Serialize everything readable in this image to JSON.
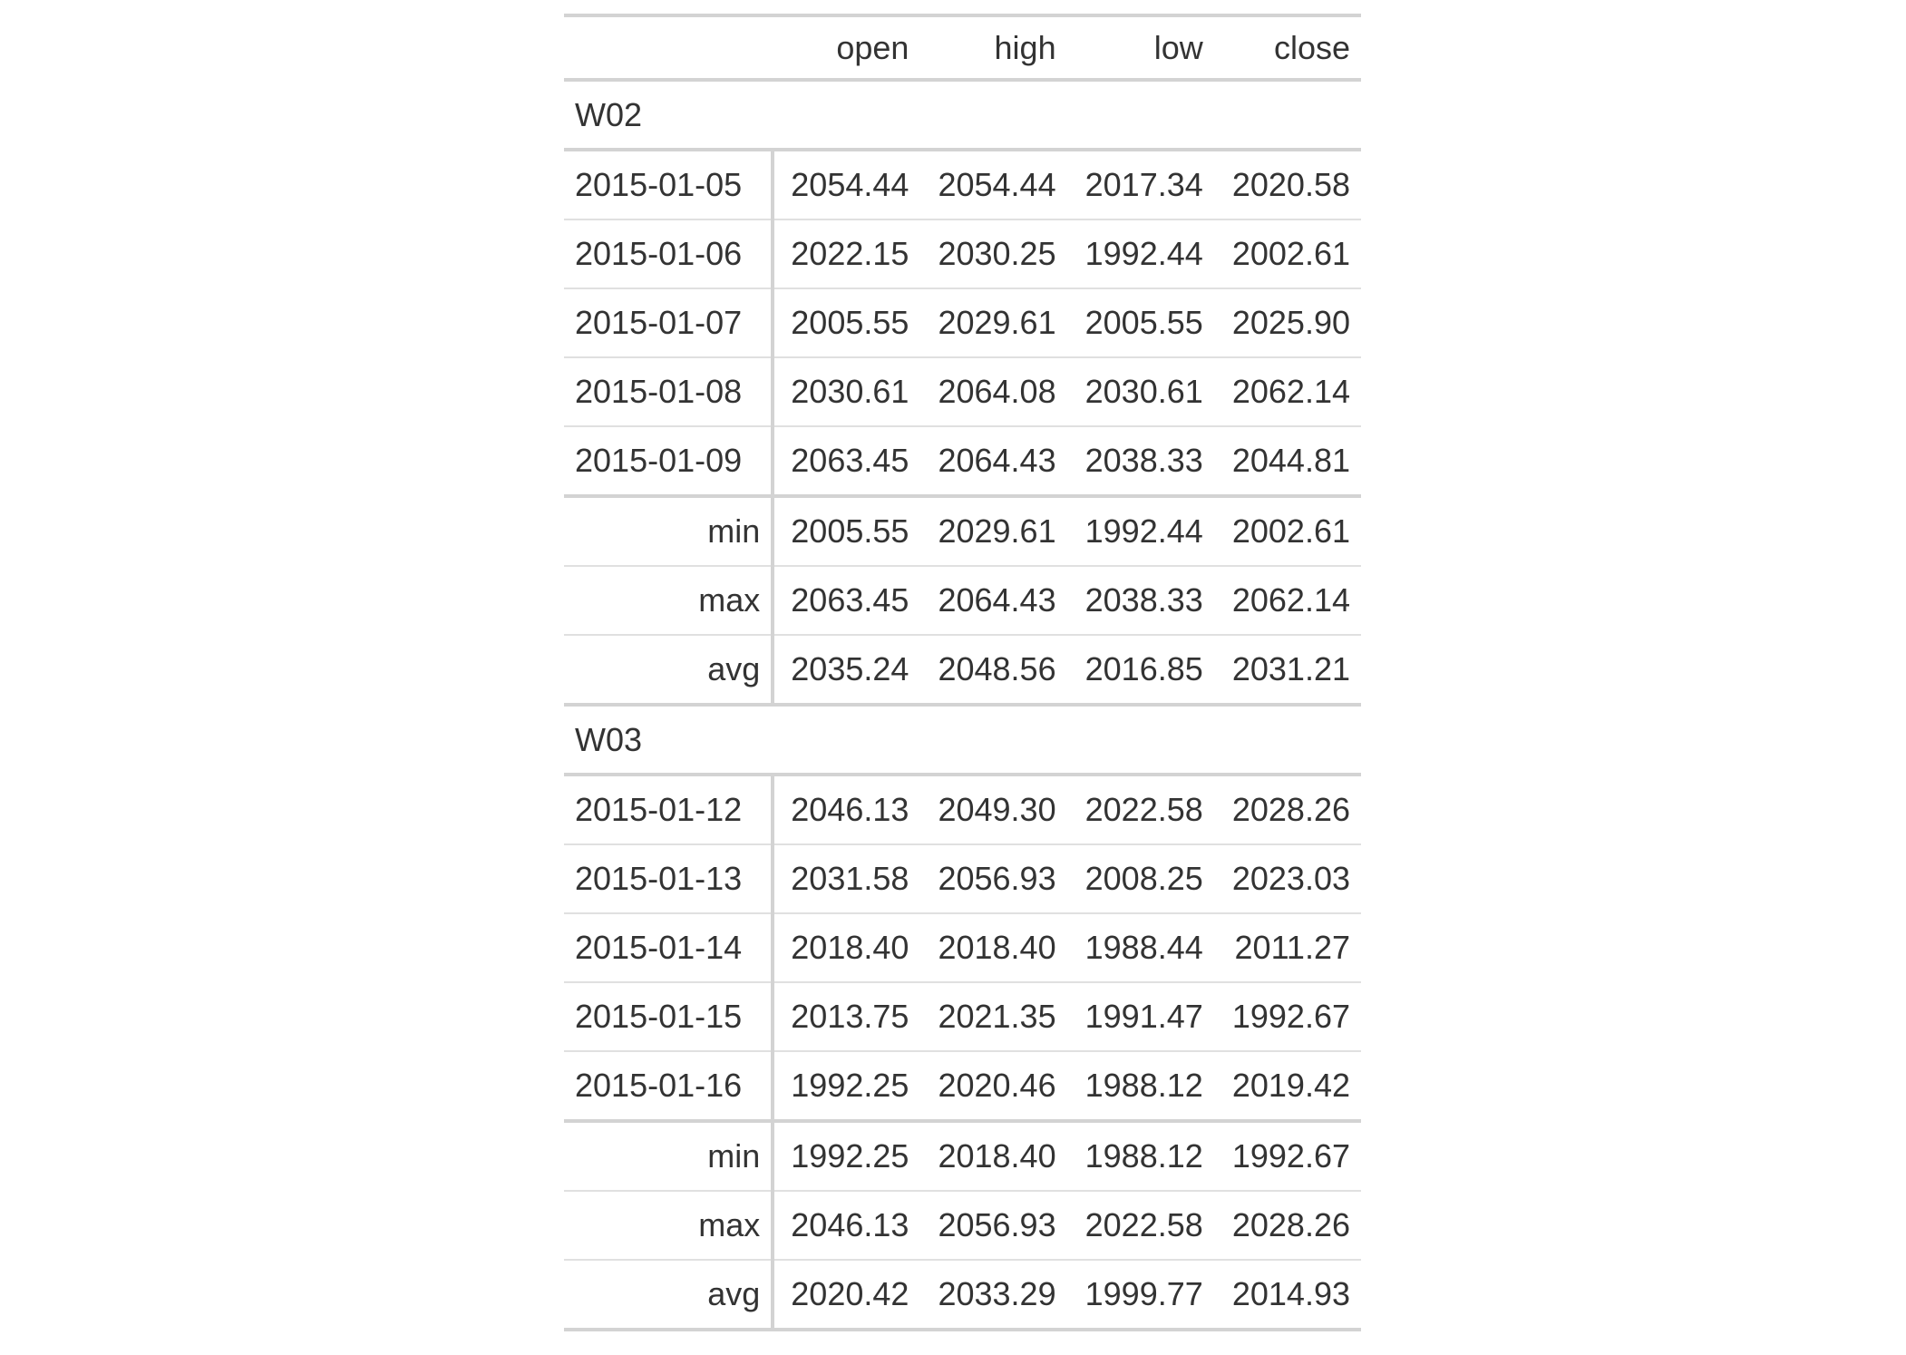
{
  "table": {
    "columns": [
      "open",
      "high",
      "low",
      "close"
    ],
    "groups": [
      {
        "label": "W02",
        "rows": [
          {
            "stub": "2015-01-05",
            "values": [
              "2054.44",
              "2054.44",
              "2017.34",
              "2020.58"
            ]
          },
          {
            "stub": "2015-01-06",
            "values": [
              "2022.15",
              "2030.25",
              "1992.44",
              "2002.61"
            ]
          },
          {
            "stub": "2015-01-07",
            "values": [
              "2005.55",
              "2029.61",
              "2005.55",
              "2025.90"
            ]
          },
          {
            "stub": "2015-01-08",
            "values": [
              "2030.61",
              "2064.08",
              "2030.61",
              "2062.14"
            ]
          },
          {
            "stub": "2015-01-09",
            "values": [
              "2063.45",
              "2064.43",
              "2038.33",
              "2044.81"
            ]
          }
        ],
        "summary": [
          {
            "stub": "min",
            "values": [
              "2005.55",
              "2029.61",
              "1992.44",
              "2002.61"
            ]
          },
          {
            "stub": "max",
            "values": [
              "2063.45",
              "2064.43",
              "2038.33",
              "2062.14"
            ]
          },
          {
            "stub": "avg",
            "values": [
              "2035.24",
              "2048.56",
              "2016.85",
              "2031.21"
            ]
          }
        ]
      },
      {
        "label": "W03",
        "rows": [
          {
            "stub": "2015-01-12",
            "values": [
              "2046.13",
              "2049.30",
              "2022.58",
              "2028.26"
            ]
          },
          {
            "stub": "2015-01-13",
            "values": [
              "2031.58",
              "2056.93",
              "2008.25",
              "2023.03"
            ]
          },
          {
            "stub": "2015-01-14",
            "values": [
              "2018.40",
              "2018.40",
              "1988.44",
              "2011.27"
            ]
          },
          {
            "stub": "2015-01-15",
            "values": [
              "2013.75",
              "2021.35",
              "1991.47",
              "1992.67"
            ]
          },
          {
            "stub": "2015-01-16",
            "values": [
              "1992.25",
              "2020.46",
              "1988.12",
              "2019.42"
            ]
          }
        ],
        "summary": [
          {
            "stub": "min",
            "values": [
              "1992.25",
              "2018.40",
              "1988.12",
              "1992.67"
            ]
          },
          {
            "stub": "max",
            "values": [
              "2046.13",
              "2056.93",
              "2022.58",
              "2028.26"
            ]
          },
          {
            "stub": "avg",
            "values": [
              "2020.42",
              "2033.29",
              "1999.77",
              "2014.93"
            ]
          }
        ]
      }
    ]
  }
}
